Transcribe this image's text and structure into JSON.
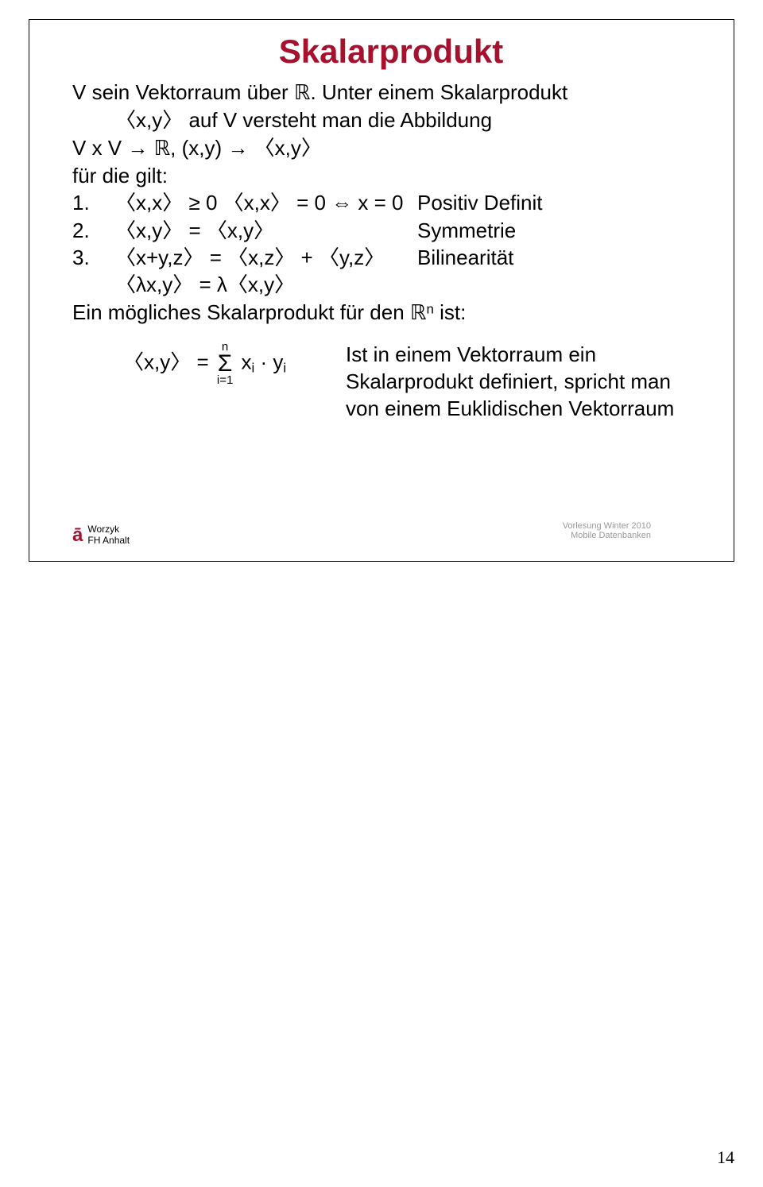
{
  "title": "Skalarprodukt",
  "intro1": "V sein Vektorraum über ",
  "intro1_tail": ". Unter einem Skalarprodukt",
  "intro2": "〈x,y〉 auf V versteht man die Abbildung",
  "intro3a": "V x V → ",
  "intro3b": ", (x,y) → 〈x,y〉",
  "intro4": "für die gilt:",
  "defs": [
    {
      "num": "1.",
      "math": "〈x,x〉 ≥ 0 〈x,x〉 = 0  ⇔ x = 0",
      "label": "Positiv Definit"
    },
    {
      "num": "2.",
      "math": "〈x,y〉 = 〈x,y〉",
      "label": "Symmetrie"
    },
    {
      "num": "3.",
      "math": "〈x+y,z〉 = 〈x,z〉 + 〈y,z〉",
      "label": "Bilinearität"
    }
  ],
  "def_extra": "〈λx,y〉 = λ〈x,y〉",
  "post1a": "Ein mögliches Skalarprodukt für den ",
  "post1b": " ist:",
  "formula_lhs": "〈x,y〉 = ",
  "sum_top": "n",
  "sum_bot": "i=1",
  "formula_rhs": " x",
  "formula_rhs2": " · y",
  "sub_i": "i",
  "explain1": "Ist in einem Vektorraum ein",
  "explain2": "Skalarprodukt definiert, spricht man",
  "explain3": "von einem Euklidischen Vektorraum",
  "R": "ℝ",
  "Rn_sup": "n",
  "footer_line1": "Worzyk",
  "footer_line2": "FH Anhalt",
  "overlay1": "Vorlesung Winter 2010",
  "overlay2": "Mobile Datenbanken",
  "pagenum": "14"
}
